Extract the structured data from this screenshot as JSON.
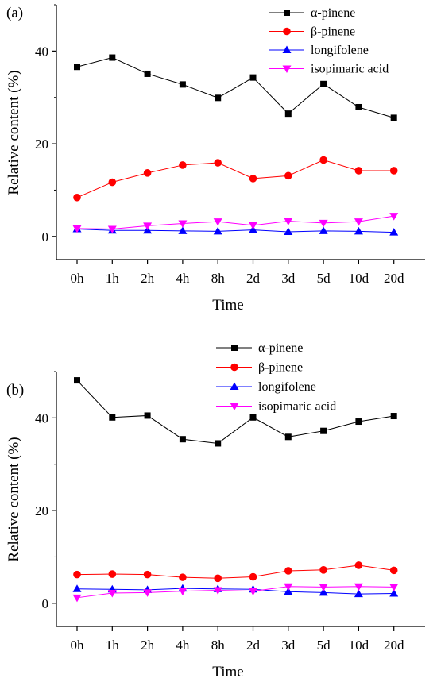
{
  "chart_data": [
    {
      "type": "line",
      "panel_label": "(a)",
      "categories": [
        "0h",
        "1h",
        "2h",
        "4h",
        "8h",
        "2d",
        "3d",
        "5d",
        "10d",
        "20d"
      ],
      "xlabel": "Time",
      "ylabel": "Relative content (%)",
      "ylim": [
        -5,
        50
      ],
      "yticks": [
        0,
        20,
        40
      ],
      "grid": false,
      "legend_position": "top-right",
      "series": [
        {
          "name": "α-pinene",
          "color": "#000000",
          "marker": "square",
          "values": [
            36.6,
            38.6,
            35.1,
            32.8,
            29.9,
            34.3,
            26.5,
            32.9,
            27.9,
            25.6
          ]
        },
        {
          "name": "β-pinene",
          "color": "#ff0000",
          "marker": "circle",
          "values": [
            8.4,
            11.7,
            13.7,
            15.4,
            15.9,
            12.5,
            13.1,
            16.5,
            14.2,
            14.2
          ]
        },
        {
          "name": "longifolene",
          "color": "#0000ff",
          "marker": "triangle-up",
          "values": [
            1.6,
            1.3,
            1.3,
            1.2,
            1.1,
            1.4,
            1.0,
            1.2,
            1.1,
            0.9
          ]
        },
        {
          "name": "isopimaric acid",
          "color": "#ff00ff",
          "marker": "triangle-down",
          "values": [
            1.7,
            1.6,
            2.3,
            2.8,
            3.2,
            2.4,
            3.3,
            2.9,
            3.2,
            4.4
          ]
        }
      ]
    },
    {
      "type": "line",
      "panel_label": "(b)",
      "categories": [
        "0h",
        "1h",
        "2h",
        "4h",
        "8h",
        "2d",
        "3d",
        "5d",
        "10d",
        "20d"
      ],
      "xlabel": "Time",
      "ylabel": "Relative content (%)",
      "ylim": [
        -5,
        50
      ],
      "yticks": [
        0,
        20,
        40
      ],
      "grid": false,
      "legend_position": "top",
      "series": [
        {
          "name": "α-pinene",
          "color": "#000000",
          "marker": "square",
          "values": [
            48.1,
            40.1,
            40.5,
            35.4,
            34.5,
            40.1,
            35.9,
            37.2,
            39.2,
            40.4
          ]
        },
        {
          "name": "β-pinene",
          "color": "#ff0000",
          "marker": "circle",
          "values": [
            6.2,
            6.3,
            6.2,
            5.6,
            5.4,
            5.7,
            7.0,
            7.2,
            8.2,
            7.1
          ]
        },
        {
          "name": "longifolene",
          "color": "#0000ff",
          "marker": "triangle-up",
          "values": [
            3.1,
            3.0,
            2.9,
            3.2,
            3.1,
            3.0,
            2.5,
            2.3,
            2.0,
            2.1
          ]
        },
        {
          "name": "isopimaric acid",
          "color": "#ff00ff",
          "marker": "triangle-down",
          "values": [
            1.2,
            2.2,
            2.3,
            2.6,
            2.8,
            2.6,
            3.6,
            3.5,
            3.6,
            3.5
          ]
        }
      ]
    }
  ]
}
